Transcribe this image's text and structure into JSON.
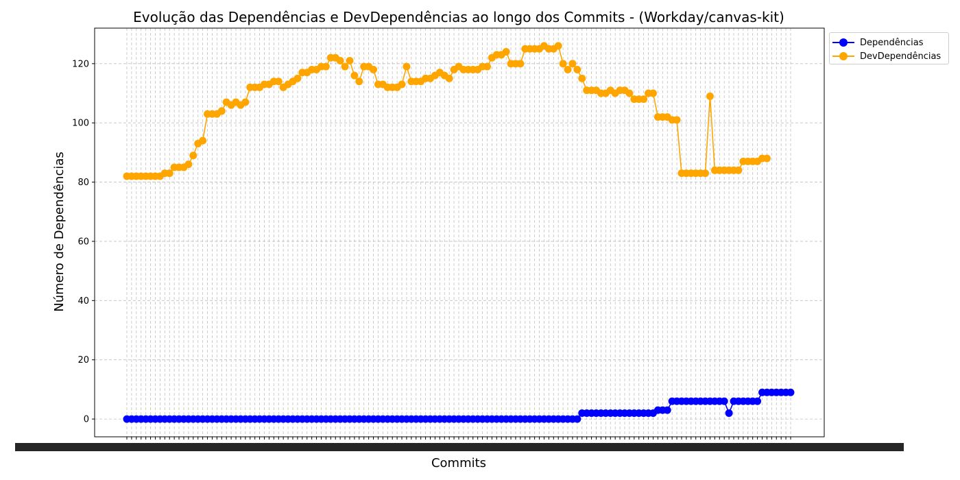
{
  "chart_data": {
    "type": "line",
    "title": "Evolução das Dependências e DevDependências ao longo dos Commits - (Workday/canvas-kit)",
    "xlabel": "Commits",
    "ylabel": "Número de Dependências",
    "ylim": [
      -6,
      132
    ],
    "yticks": [
      0,
      20,
      40,
      60,
      80,
      100,
      120
    ],
    "grid": true,
    "legend_position": "upper right, outside plot",
    "series": [
      {
        "name": "Dependências",
        "color": "#0000ff",
        "values": [
          0,
          0,
          0,
          0,
          0,
          0,
          0,
          0,
          0,
          0,
          0,
          0,
          0,
          0,
          0,
          0,
          0,
          0,
          0,
          0,
          0,
          0,
          0,
          0,
          0,
          0,
          0,
          0,
          0,
          0,
          0,
          0,
          0,
          0,
          0,
          0,
          0,
          0,
          0,
          0,
          0,
          0,
          0,
          0,
          0,
          0,
          0,
          0,
          0,
          0,
          0,
          0,
          0,
          0,
          0,
          0,
          0,
          0,
          0,
          0,
          0,
          0,
          0,
          0,
          0,
          0,
          0,
          0,
          0,
          0,
          0,
          0,
          0,
          0,
          0,
          0,
          0,
          0,
          0,
          0,
          0,
          0,
          0,
          0,
          0,
          0,
          0,
          0,
          0,
          0,
          0,
          0,
          0,
          0,
          0,
          0,
          2,
          2,
          2,
          2,
          2,
          2,
          2,
          2,
          2,
          2,
          2,
          2,
          2,
          2,
          2,
          2,
          3,
          3,
          3,
          6,
          6,
          6,
          6,
          6,
          6,
          6,
          6,
          6,
          6,
          6,
          6,
          2,
          6,
          6,
          6,
          6,
          6,
          6,
          9,
          9,
          9,
          9,
          9,
          9,
          9
        ]
      },
      {
        "name": "DevDependências",
        "color": "#ffa500",
        "values": [
          82,
          82,
          82,
          82,
          82,
          82,
          82,
          82,
          83,
          83,
          85,
          85,
          85,
          86,
          89,
          93,
          94,
          103,
          103,
          103,
          104,
          107,
          106,
          107,
          106,
          107,
          112,
          112,
          112,
          113,
          113,
          114,
          114,
          112,
          113,
          114,
          115,
          117,
          117,
          118,
          118,
          119,
          119,
          122,
          122,
          121,
          119,
          121,
          116,
          114,
          119,
          119,
          118,
          113,
          113,
          112,
          112,
          112,
          113,
          119,
          114,
          114,
          114,
          115,
          115,
          116,
          117,
          116,
          115,
          118,
          119,
          118,
          118,
          118,
          118,
          119,
          119,
          122,
          123,
          123,
          124,
          120,
          120,
          120,
          125,
          125,
          125,
          125,
          126,
          125,
          125,
          126,
          120,
          118,
          120,
          118,
          115,
          111,
          111,
          111,
          110,
          110,
          111,
          110,
          111,
          111,
          110,
          108,
          108,
          108,
          110,
          110,
          102,
          102,
          102,
          101,
          101,
          83,
          83,
          83,
          83,
          83,
          83,
          109,
          84,
          84,
          84,
          84,
          84,
          84,
          87,
          87,
          87,
          87,
          88,
          88
        ]
      }
    ]
  }
}
